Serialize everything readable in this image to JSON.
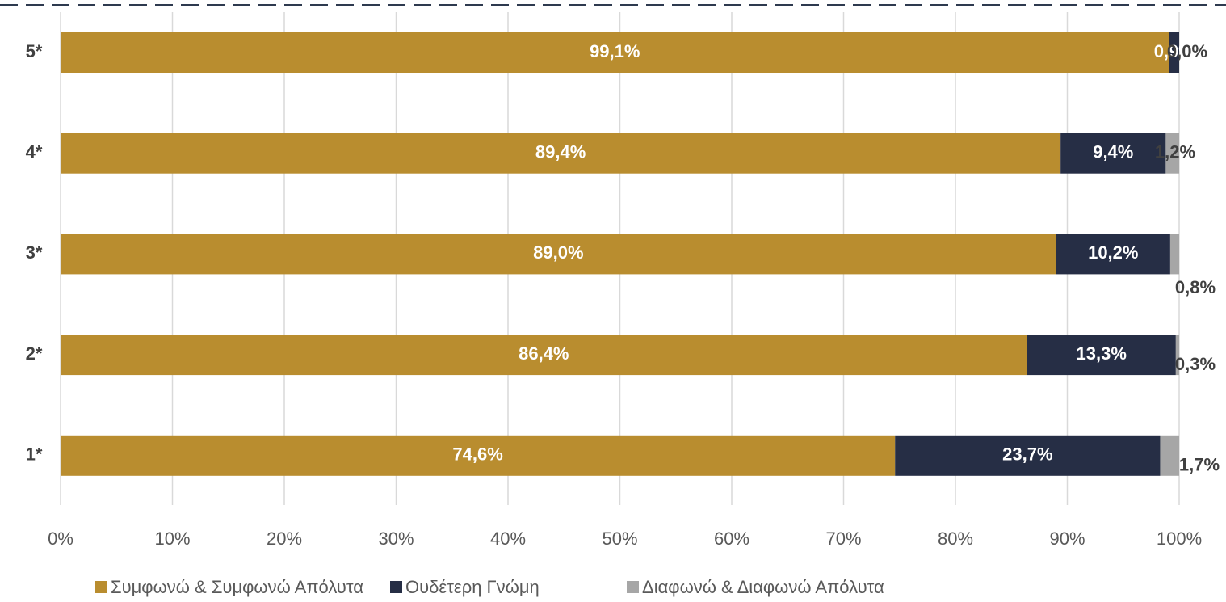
{
  "chart_data": {
    "type": "stacked-bar-horizontal",
    "categories": [
      "5*",
      "4*",
      "3*",
      "2*",
      "1*"
    ],
    "series": [
      {
        "name": "Συμφωνώ & Συμφωνώ Απόλυτα",
        "color": "#B98D2F",
        "values": [
          99.1,
          89.4,
          89.0,
          86.4,
          74.6
        ],
        "value_labels": [
          "99,1%",
          "89,4%",
          "89,0%",
          "86,4%",
          "74,6%"
        ]
      },
      {
        "name": "Ουδέτερη Γνώμη",
        "color": "#262E45",
        "values": [
          0.9,
          9.4,
          10.2,
          13.3,
          23.7
        ],
        "value_labels": [
          "0,9%",
          "9,4%",
          "10,2%",
          "13,3%",
          "23,7%"
        ]
      },
      {
        "name": "Διαφωνώ & Διαφωνώ Απόλυτα",
        "color": "#A6A6A6",
        "values": [
          0.0,
          1.2,
          0.8,
          0.3,
          1.7
        ],
        "value_labels": [
          "0,0%",
          "1,2%",
          "0,8%",
          "0,3%",
          "1,7%"
        ]
      }
    ],
    "xlim": [
      0,
      100
    ],
    "xticks": [
      {
        "value": 0,
        "label": "0%"
      },
      {
        "value": 10,
        "label": "10%"
      },
      {
        "value": 20,
        "label": "20%"
      },
      {
        "value": 30,
        "label": "30%"
      },
      {
        "value": 40,
        "label": "40%"
      },
      {
        "value": 50,
        "label": "50%"
      },
      {
        "value": 60,
        "label": "60%"
      },
      {
        "value": 70,
        "label": "70%"
      },
      {
        "value": 80,
        "label": "80%"
      },
      {
        "value": 90,
        "label": "90%"
      },
      {
        "value": 100,
        "label": "100%"
      }
    ],
    "grid": true
  }
}
